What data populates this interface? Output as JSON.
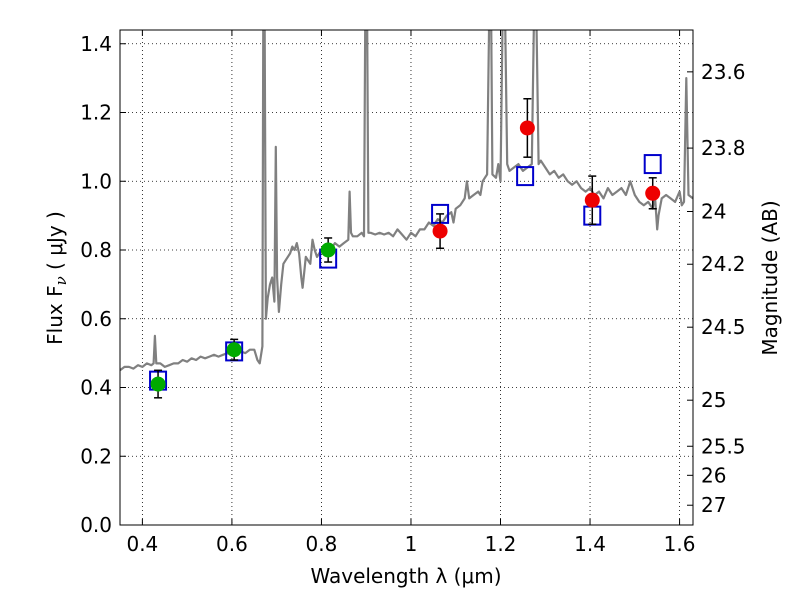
{
  "chart_data": {
    "type": "scatter",
    "xlabel": "Wavelength  λ (μm)",
    "ylabel": "Flux  F",
    "ylabel_subscript": "ν",
    "ylabel_unit": "  ( μJy )",
    "y2label": "Magnitude (AB)",
    "xlim": [
      0.35,
      1.63
    ],
    "ylim": [
      0.0,
      1.44
    ],
    "grid": true,
    "x_ticks": [
      {
        "value": 0.4,
        "label": "0.4"
      },
      {
        "value": 0.6,
        "label": "0.6"
      },
      {
        "value": 0.8,
        "label": "0.8"
      },
      {
        "value": 1.0,
        "label": "1"
      },
      {
        "value": 1.2,
        "label": "1.2"
      },
      {
        "value": 1.4,
        "label": "1.4"
      },
      {
        "value": 1.6,
        "label": "1.6"
      }
    ],
    "y_ticks": [
      {
        "value": 0.0,
        "label": "0.0"
      },
      {
        "value": 0.2,
        "label": "0.2"
      },
      {
        "value": 0.4,
        "label": "0.4"
      },
      {
        "value": 0.6,
        "label": "0.6"
      },
      {
        "value": 0.8,
        "label": "0.8"
      },
      {
        "value": 1.0,
        "label": "1.0"
      },
      {
        "value": 1.2,
        "label": "1.2"
      },
      {
        "value": 1.4,
        "label": "1.4"
      }
    ],
    "y2_ticks": [
      {
        "magnitude": 23.6,
        "label": "23.6"
      },
      {
        "magnitude": 23.8,
        "label": "23.8"
      },
      {
        "magnitude": 24.0,
        "label": "24"
      },
      {
        "magnitude": 24.2,
        "label": "24.2"
      },
      {
        "magnitude": 24.5,
        "label": "24.5"
      },
      {
        "magnitude": 25.0,
        "label": "25"
      },
      {
        "magnitude": 25.5,
        "label": "25.5"
      },
      {
        "magnitude": 26.0,
        "label": "26"
      },
      {
        "magnitude": 27.0,
        "label": "27"
      }
    ],
    "series": [
      {
        "kind": "spectrum",
        "color": "#808080",
        "points": [
          [
            0.35,
            0.45
          ],
          [
            0.36,
            0.46
          ],
          [
            0.37,
            0.46
          ],
          [
            0.38,
            0.455
          ],
          [
            0.39,
            0.465
          ],
          [
            0.4,
            0.46
          ],
          [
            0.41,
            0.47
          ],
          [
            0.42,
            0.465
          ],
          [
            0.425,
            0.47
          ],
          [
            0.428,
            0.55
          ],
          [
            0.431,
            0.47
          ],
          [
            0.44,
            0.47
          ],
          [
            0.45,
            0.46
          ],
          [
            0.46,
            0.465
          ],
          [
            0.47,
            0.47
          ],
          [
            0.48,
            0.47
          ],
          [
            0.49,
            0.48
          ],
          [
            0.5,
            0.475
          ],
          [
            0.51,
            0.485
          ],
          [
            0.52,
            0.48
          ],
          [
            0.53,
            0.49
          ],
          [
            0.54,
            0.485
          ],
          [
            0.55,
            0.49
          ],
          [
            0.56,
            0.495
          ],
          [
            0.57,
            0.49
          ],
          [
            0.58,
            0.495
          ],
          [
            0.59,
            0.5
          ],
          [
            0.6,
            0.495
          ],
          [
            0.61,
            0.5
          ],
          [
            0.62,
            0.505
          ],
          [
            0.63,
            0.5
          ],
          [
            0.64,
            0.51
          ],
          [
            0.65,
            0.51
          ],
          [
            0.657,
            0.48
          ],
          [
            0.662,
            0.47
          ],
          [
            0.668,
            0.52
          ],
          [
            0.67,
            1.5
          ],
          [
            0.673,
            1.5
          ],
          [
            0.676,
            0.6
          ],
          [
            0.68,
            0.66
          ],
          [
            0.685,
            0.7
          ],
          [
            0.69,
            0.72
          ],
          [
            0.695,
            0.65
          ],
          [
            0.698,
            1.1
          ],
          [
            0.701,
            0.72
          ],
          [
            0.705,
            0.62
          ],
          [
            0.71,
            0.7
          ],
          [
            0.715,
            0.76
          ],
          [
            0.72,
            0.77
          ],
          [
            0.73,
            0.79
          ],
          [
            0.735,
            0.81
          ],
          [
            0.74,
            0.8
          ],
          [
            0.745,
            0.82
          ],
          [
            0.75,
            0.79
          ],
          [
            0.755,
            0.72
          ],
          [
            0.758,
            0.69
          ],
          [
            0.762,
            0.74
          ],
          [
            0.765,
            0.78
          ],
          [
            0.77,
            0.77
          ],
          [
            0.775,
            0.76
          ],
          [
            0.78,
            0.83
          ],
          [
            0.785,
            0.8
          ],
          [
            0.79,
            0.78
          ],
          [
            0.8,
            0.8
          ],
          [
            0.81,
            0.81
          ],
          [
            0.82,
            0.8
          ],
          [
            0.83,
            0.82
          ],
          [
            0.84,
            0.81
          ],
          [
            0.85,
            0.82
          ],
          [
            0.86,
            0.83
          ],
          [
            0.863,
            0.97
          ],
          [
            0.866,
            0.85
          ],
          [
            0.87,
            0.84
          ],
          [
            0.88,
            0.84
          ],
          [
            0.89,
            0.85
          ],
          [
            0.895,
            0.84
          ],
          [
            0.898,
            1.5
          ],
          [
            0.902,
            1.5
          ],
          [
            0.905,
            0.85
          ],
          [
            0.91,
            0.85
          ],
          [
            0.92,
            0.845
          ],
          [
            0.93,
            0.85
          ],
          [
            0.94,
            0.845
          ],
          [
            0.95,
            0.85
          ],
          [
            0.96,
            0.84
          ],
          [
            0.97,
            0.86
          ],
          [
            0.98,
            0.845
          ],
          [
            0.99,
            0.83
          ],
          [
            1.0,
            0.85
          ],
          [
            1.01,
            0.84
          ],
          [
            1.02,
            0.86
          ],
          [
            1.03,
            0.86
          ],
          [
            1.04,
            0.88
          ],
          [
            1.05,
            0.87
          ],
          [
            1.06,
            0.89
          ],
          [
            1.07,
            0.88
          ],
          [
            1.08,
            0.9
          ],
          [
            1.09,
            0.91
          ],
          [
            1.095,
            0.88
          ],
          [
            1.1,
            0.92
          ],
          [
            1.11,
            0.93
          ],
          [
            1.12,
            0.95
          ],
          [
            1.125,
            1.0
          ],
          [
            1.13,
            0.95
          ],
          [
            1.14,
            0.96
          ],
          [
            1.15,
            0.97
          ],
          [
            1.155,
            0.96
          ],
          [
            1.16,
            1.0
          ],
          [
            1.17,
            1.02
          ],
          [
            1.175,
            1.5
          ],
          [
            1.179,
            1.5
          ],
          [
            1.182,
            1.02
          ],
          [
            1.19,
            1.01
          ],
          [
            1.195,
            1.05
          ],
          [
            1.2,
            1.0
          ],
          [
            1.205,
            1.5
          ],
          [
            1.21,
            1.5
          ],
          [
            1.215,
            1.05
          ],
          [
            1.22,
            1.03
          ],
          [
            1.23,
            1.04
          ],
          [
            1.24,
            1.05
          ],
          [
            1.25,
            1.03
          ],
          [
            1.26,
            1.04
          ],
          [
            1.27,
            1.05
          ],
          [
            1.275,
            1.5
          ],
          [
            1.28,
            1.5
          ],
          [
            1.285,
            1.05
          ],
          [
            1.29,
            1.06
          ],
          [
            1.3,
            1.04
          ],
          [
            1.31,
            1.02
          ],
          [
            1.32,
            1.03
          ],
          [
            1.33,
            1.01
          ],
          [
            1.34,
            1.02
          ],
          [
            1.35,
            1.0
          ],
          [
            1.36,
            0.99
          ],
          [
            1.37,
            1.0
          ],
          [
            1.38,
            0.98
          ],
          [
            1.39,
            0.97
          ],
          [
            1.4,
            0.98
          ],
          [
            1.41,
            0.96
          ],
          [
            1.42,
            0.97
          ],
          [
            1.43,
            0.95
          ],
          [
            1.44,
            0.98
          ],
          [
            1.45,
            0.96
          ],
          [
            1.46,
            0.97
          ],
          [
            1.47,
            0.98
          ],
          [
            1.48,
            0.96
          ],
          [
            1.49,
            1.0
          ],
          [
            1.5,
            0.96
          ],
          [
            1.51,
            0.94
          ],
          [
            1.52,
            0.93
          ],
          [
            1.53,
            0.94
          ],
          [
            1.54,
            0.92
          ],
          [
            1.545,
            0.96
          ],
          [
            1.55,
            0.86
          ],
          [
            1.553,
            0.9
          ],
          [
            1.56,
            0.95
          ],
          [
            1.57,
            0.96
          ],
          [
            1.58,
            0.95
          ],
          [
            1.59,
            0.94
          ],
          [
            1.6,
            0.97
          ],
          [
            1.605,
            0.93
          ],
          [
            1.61,
            0.94
          ],
          [
            1.615,
            1.3
          ],
          [
            1.62,
            0.96
          ],
          [
            1.63,
            0.95
          ]
        ]
      },
      {
        "kind": "model",
        "color": "#0000CC",
        "marker": "open-square",
        "points": [
          [
            0.435,
            0.42
          ],
          [
            0.605,
            0.505
          ],
          [
            0.815,
            0.775
          ],
          [
            1.065,
            0.905
          ],
          [
            1.255,
            1.015
          ],
          [
            1.405,
            0.9
          ],
          [
            1.54,
            1.05
          ]
        ]
      },
      {
        "kind": "observed-optical",
        "color": "#00AA00",
        "marker": "circle",
        "points": [
          {
            "x": 0.435,
            "y": 0.41,
            "err": 0.04
          },
          {
            "x": 0.605,
            "y": 0.51,
            "err": 0.03
          },
          {
            "x": 0.815,
            "y": 0.8,
            "err": 0.035
          }
        ]
      },
      {
        "kind": "observed-nir",
        "color": "#EE0000",
        "marker": "circle",
        "points": [
          {
            "x": 1.065,
            "y": 0.855,
            "err": 0.05
          },
          {
            "x": 1.26,
            "y": 1.155,
            "err": 0.085
          },
          {
            "x": 1.405,
            "y": 0.945,
            "err": 0.07
          },
          {
            "x": 1.54,
            "y": 0.965,
            "err": 0.045
          }
        ]
      }
    ]
  }
}
